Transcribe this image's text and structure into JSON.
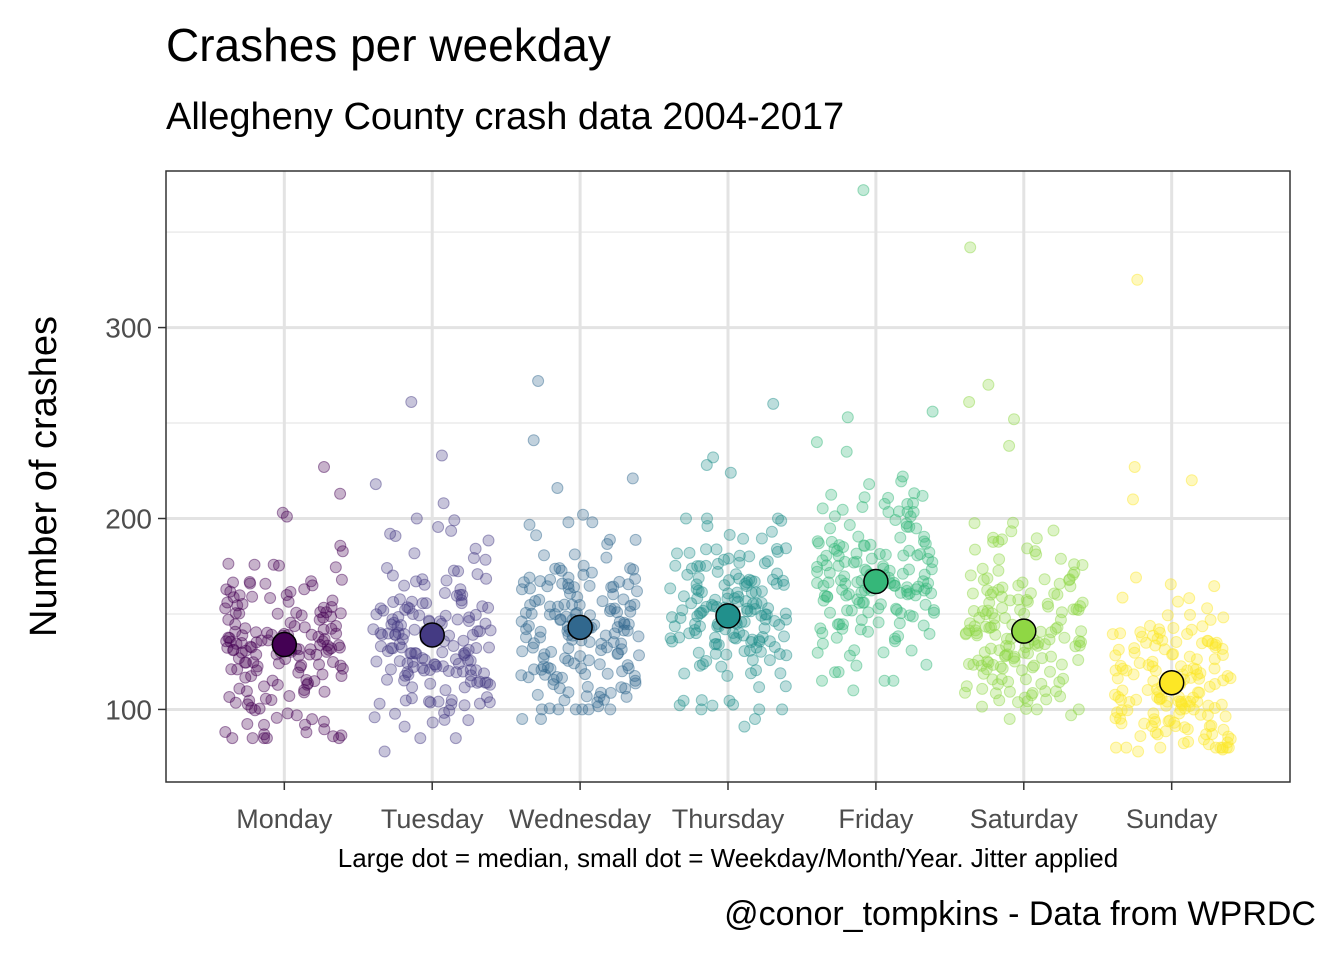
{
  "chart_data": {
    "type": "scatter",
    "title": "Crashes per weekday",
    "subtitle": "Allegheny County crash data 2004-2017",
    "xlabel": "Large dot = median, small dot = Weekday/Month/Year. Jitter applied",
    "ylabel": "Number of crashes",
    "caption": "@conor_tompkins - Data from WPRDC",
    "categories": [
      "Monday",
      "Tuesday",
      "Wednesday",
      "Thursday",
      "Friday",
      "Saturday",
      "Sunday"
    ],
    "ylim": [
      62,
      382
    ],
    "yticks": [
      100,
      200,
      300
    ],
    "grid": true,
    "series": [
      {
        "category": "Monday",
        "color": "#440154",
        "median": 134,
        "highlights": [
          227,
          213,
          203,
          201,
          86,
          87,
          92
        ],
        "points_min": 85,
        "points_max": 190,
        "points_center": 134,
        "points_spread": 23
      },
      {
        "category": "Tuesday",
        "color": "#443A83",
        "median": 139,
        "highlights": [
          261,
          233,
          218,
          208,
          78,
          85,
          91
        ],
        "points_min": 85,
        "points_max": 200,
        "points_center": 139,
        "points_spread": 24
      },
      {
        "category": "Wednesday",
        "color": "#31688E",
        "median": 143,
        "highlights": [
          272,
          241,
          221,
          216,
          202,
          95,
          95
        ],
        "points_min": 100,
        "points_max": 198,
        "points_center": 143,
        "points_spread": 22
      },
      {
        "category": "Thursday",
        "color": "#21908C",
        "median": 149,
        "highlights": [
          260,
          232,
          228,
          224,
          91,
          95,
          102
        ],
        "points_min": 100,
        "points_max": 200,
        "points_center": 149,
        "points_spread": 23
      },
      {
        "category": "Friday",
        "color": "#35B779",
        "median": 167,
        "highlights": [
          372,
          256,
          253,
          240,
          235,
          110,
          115
        ],
        "points_min": 115,
        "points_max": 230,
        "points_center": 167,
        "points_spread": 25
      },
      {
        "category": "Saturday",
        "color": "#8FD744",
        "median": 141,
        "highlights": [
          342,
          270,
          261,
          252,
          238,
          95,
          97
        ],
        "points_min": 100,
        "points_max": 205,
        "points_center": 141,
        "points_spread": 24
      },
      {
        "category": "Sunday",
        "color": "#FDE725",
        "median": 114,
        "highlights": [
          325,
          227,
          220,
          210,
          78,
          79,
          80
        ],
        "points_min": 80,
        "points_max": 185,
        "points_center": 114,
        "points_spread": 20
      }
    ]
  }
}
